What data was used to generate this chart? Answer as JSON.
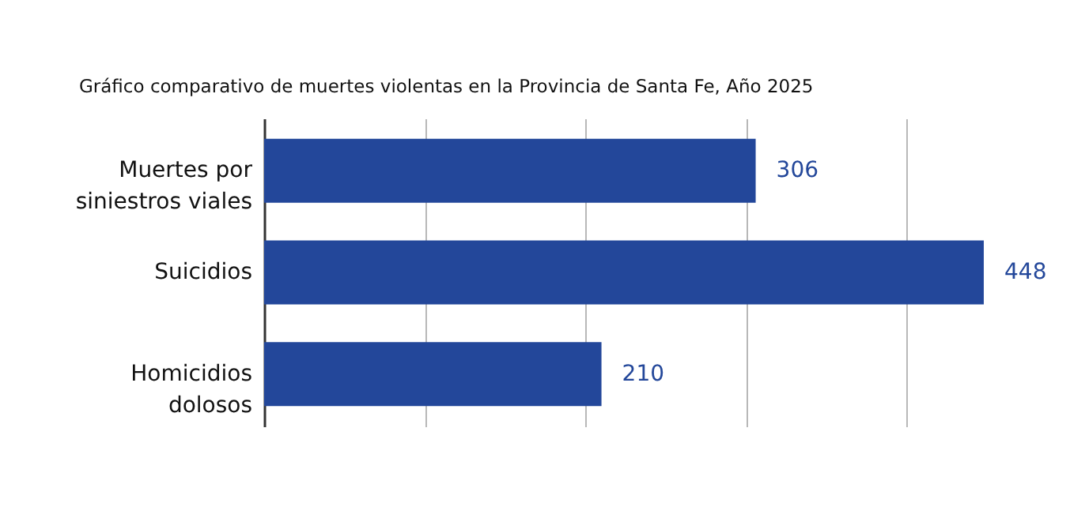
{
  "chart_data": {
    "type": "bar",
    "orientation": "horizontal",
    "title": "Gráfico comparativo de muertes violentas en la Provincia de Santa Fe, Año 2025",
    "categories": [
      "Muertes por\nsiniestros viales",
      "Suicidios",
      "Homicidios\ndolosos"
    ],
    "values": [
      306,
      448,
      210
    ],
    "color": "#23479a",
    "xticks": [
      {
        "value": 0,
        "label": null
      },
      {
        "value": 100,
        "label": null
      },
      {
        "value": 200,
        "label": null
      },
      {
        "value": 300,
        "label": null
      },
      {
        "value": 400,
        "label": null
      }
    ],
    "grid": "x",
    "tick_labels": "y",
    "data_labels": true
  }
}
